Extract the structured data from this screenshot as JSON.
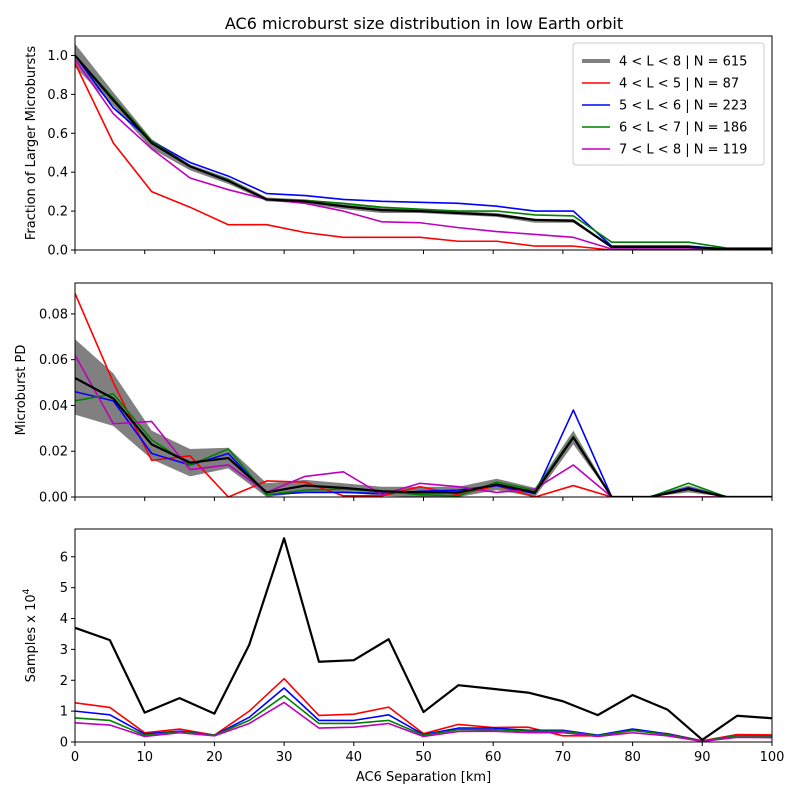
{
  "figure_title": "AC6 microburst size distribution in low Earth orbit",
  "colors": {
    "all": "#000000",
    "band": "#808080",
    "legend_all": "#808080",
    "L45": "#ff0000",
    "L56": "#0000ff",
    "L67": "#008000",
    "L78": "#bf00bf"
  },
  "chart_data": [
    {
      "type": "line",
      "title": "",
      "xlabel": "",
      "ylabel": "Fraction of Larger Microbursts",
      "xlim": [
        0,
        100
      ],
      "ylim": [
        0,
        1.1
      ],
      "xticks": [
        0,
        10,
        20,
        30,
        40,
        50,
        60,
        70,
        80,
        90,
        100
      ],
      "xtick_labels_visible": false,
      "yticks": [
        0.0,
        0.2,
        0.4,
        0.6,
        0.8,
        1.0
      ],
      "ytick_labels": [
        "0.0",
        "0.2",
        "0.4",
        "0.6",
        "0.8",
        "1.0"
      ],
      "grid": false,
      "legend_position": "top-right",
      "x": [
        0,
        5.5,
        11,
        16.5,
        22,
        27.5,
        33,
        38.5,
        44,
        49.5,
        55,
        60.5,
        66,
        71.5,
        77,
        82.5,
        88,
        93.5,
        100
      ],
      "band": {
        "lower": [
          0.94,
          0.74,
          0.52,
          0.41,
          0.34,
          0.25,
          0.24,
          0.21,
          0.19,
          0.19,
          0.18,
          0.17,
          0.14,
          0.14,
          0.01,
          0.01,
          0.01,
          0.0,
          0.0
        ],
        "upper": [
          1.06,
          0.81,
          0.57,
          0.44,
          0.37,
          0.27,
          0.26,
          0.24,
          0.22,
          0.21,
          0.2,
          0.19,
          0.16,
          0.16,
          0.02,
          0.02,
          0.02,
          0.01,
          0.01
        ]
      },
      "series": [
        {
          "name": "4 < L < 8 | N = 615",
          "color_key": "all",
          "legend_color_key": "legend_all",
          "legend_width": 4,
          "values": [
            1.0,
            0.77,
            0.55,
            0.43,
            0.355,
            0.26,
            0.25,
            0.225,
            0.205,
            0.2,
            0.19,
            0.18,
            0.155,
            0.15,
            0.015,
            0.015,
            0.015,
            0.005,
            0.005
          ]
        },
        {
          "name": "4 < L < 5 | N = 87",
          "color_key": "L45",
          "values": [
            0.96,
            0.55,
            0.3,
            0.22,
            0.13,
            0.13,
            0.09,
            0.065,
            0.065,
            0.065,
            0.045,
            0.045,
            0.02,
            0.02,
            0.0,
            0.0,
            0.0,
            0.0,
            0.0
          ]
        },
        {
          "name": "5 < L < 6 | N = 223",
          "color_key": "L56",
          "values": [
            1.0,
            0.73,
            0.56,
            0.45,
            0.38,
            0.29,
            0.28,
            0.26,
            0.25,
            0.245,
            0.24,
            0.225,
            0.2,
            0.2,
            0.02,
            0.02,
            0.02,
            0.005,
            0.005
          ]
        },
        {
          "name": "6 < L < 7 | N = 186",
          "color_key": "L67",
          "values": [
            1.0,
            0.78,
            0.56,
            0.43,
            0.36,
            0.26,
            0.255,
            0.24,
            0.22,
            0.21,
            0.2,
            0.2,
            0.18,
            0.175,
            0.04,
            0.04,
            0.04,
            0.01,
            0.01
          ]
        },
        {
          "name": "7 < L < 8 | N = 119",
          "color_key": "L78",
          "values": [
            0.98,
            0.7,
            0.52,
            0.37,
            0.31,
            0.26,
            0.24,
            0.2,
            0.145,
            0.14,
            0.115,
            0.095,
            0.08,
            0.065,
            0.005,
            0.005,
            0.005,
            0.0,
            0.0
          ]
        }
      ]
    },
    {
      "type": "line",
      "title": "",
      "xlabel": "",
      "ylabel": "Microburst PD",
      "xlim": [
        0,
        100
      ],
      "ylim": [
        0,
        0.0935
      ],
      "xticks": [
        0,
        10,
        20,
        30,
        40,
        50,
        60,
        70,
        80,
        90,
        100
      ],
      "xtick_labels_visible": false,
      "yticks": [
        0.0,
        0.02,
        0.04,
        0.06,
        0.08
      ],
      "ytick_labels": [
        "0.00",
        "0.02",
        "0.04",
        "0.06",
        "0.08"
      ],
      "grid": false,
      "legend_position": "none",
      "x": [
        0,
        5.5,
        11,
        16.5,
        22,
        27.5,
        33,
        38.5,
        44,
        49.5,
        55,
        60.5,
        66,
        71.5,
        77,
        82.5,
        88,
        93.5,
        100
      ],
      "band": {
        "lower": [
          0.036,
          0.031,
          0.0165,
          0.009,
          0.0125,
          0.0,
          0.002,
          0.002,
          0.0005,
          0.0,
          0.0,
          0.003,
          0.0,
          0.023,
          0.0,
          0.0,
          0.002,
          0.0,
          0.0
        ],
        "upper": [
          0.069,
          0.054,
          0.029,
          0.021,
          0.0215,
          0.006,
          0.0075,
          0.006,
          0.0045,
          0.0045,
          0.0045,
          0.008,
          0.004,
          0.029,
          0.0005,
          0.0005,
          0.005,
          0.0005,
          0.0005
        ]
      },
      "series": [
        {
          "name": "",
          "color_key": "all",
          "values": [
            0.052,
            0.043,
            0.023,
            0.015,
            0.017,
            0.002,
            0.005,
            0.004,
            0.0025,
            0.002,
            0.002,
            0.0055,
            0.002,
            0.026,
            0.0,
            0.0,
            0.0035,
            0.0,
            0.0
          ]
        },
        {
          "name": "",
          "color_key": "L45",
          "values": [
            0.089,
            0.05,
            0.016,
            0.018,
            0.0,
            0.007,
            0.0065,
            0.0005,
            0.0005,
            0.0045,
            0.001,
            0.005,
            0.0,
            0.005,
            0.0,
            0.0,
            0.0,
            0.0,
            0.0
          ]
        },
        {
          "name": "",
          "color_key": "L56",
          "values": [
            0.046,
            0.042,
            0.019,
            0.014,
            0.019,
            0.001,
            0.002,
            0.002,
            0.0015,
            0.0025,
            0.003,
            0.005,
            0.0015,
            0.038,
            0.0,
            0.0,
            0.004,
            0.0,
            0.0
          ]
        },
        {
          "name": "",
          "color_key": "L67",
          "values": [
            0.042,
            0.045,
            0.025,
            0.014,
            0.021,
            0.001,
            0.003,
            0.0035,
            0.0025,
            0.001,
            0.0005,
            0.0065,
            0.003,
            0.0265,
            0.0,
            0.0,
            0.006,
            0.0,
            0.0
          ]
        },
        {
          "name": "",
          "color_key": "L78",
          "values": [
            0.062,
            0.032,
            0.033,
            0.012,
            0.014,
            0.002,
            0.009,
            0.011,
            0.001,
            0.006,
            0.0045,
            0.002,
            0.0035,
            0.014,
            0.0,
            0.0,
            0.0,
            0.0,
            0.0
          ]
        }
      ]
    },
    {
      "type": "line",
      "title": "",
      "xlabel": "AC6 Separation [km]",
      "ylabel_prefix": "Samples x 10",
      "ylabel_exponent": "4",
      "xlim": [
        0,
        100
      ],
      "ylim": [
        0,
        6.9
      ],
      "xticks": [
        0,
        10,
        20,
        30,
        40,
        50,
        60,
        70,
        80,
        90,
        100
      ],
      "xtick_labels_visible": true,
      "xtick_labels": [
        "0",
        "10",
        "20",
        "30",
        "40",
        "50",
        "60",
        "70",
        "80",
        "90",
        "100"
      ],
      "yticks": [
        0,
        1,
        2,
        3,
        4,
        5,
        6
      ],
      "ytick_labels": [
        "0",
        "1",
        "2",
        "3",
        "4",
        "5",
        "6"
      ],
      "grid": false,
      "legend_position": "none",
      "x": [
        0,
        5,
        10,
        15,
        20,
        25,
        30,
        35,
        40,
        45,
        50,
        55,
        60,
        65,
        70,
        75,
        80,
        85,
        90,
        95,
        100
      ],
      "series": [
        {
          "name": "",
          "color_key": "all",
          "values": [
            3.7,
            3.3,
            0.95,
            1.42,
            0.92,
            3.15,
            6.6,
            2.6,
            2.65,
            3.33,
            0.97,
            1.84,
            1.72,
            1.6,
            1.32,
            0.87,
            1.52,
            1.05,
            0.07,
            0.85,
            0.77
          ]
        },
        {
          "name": "",
          "color_key": "L45",
          "values": [
            1.27,
            1.12,
            0.3,
            0.42,
            0.22,
            1.0,
            2.05,
            0.86,
            0.9,
            1.13,
            0.27,
            0.57,
            0.47,
            0.48,
            0.2,
            0.2,
            0.37,
            0.27,
            0.04,
            0.24,
            0.23
          ]
        },
        {
          "name": "",
          "color_key": "L56",
          "values": [
            1.0,
            0.88,
            0.26,
            0.35,
            0.22,
            0.8,
            1.75,
            0.7,
            0.7,
            0.88,
            0.24,
            0.45,
            0.45,
            0.38,
            0.38,
            0.22,
            0.42,
            0.26,
            0.03,
            0.2,
            0.19
          ]
        },
        {
          "name": "",
          "color_key": "L67",
          "values": [
            0.78,
            0.7,
            0.22,
            0.33,
            0.22,
            0.7,
            1.5,
            0.6,
            0.6,
            0.7,
            0.22,
            0.4,
            0.4,
            0.35,
            0.35,
            0.2,
            0.38,
            0.24,
            0.03,
            0.2,
            0.19
          ]
        },
        {
          "name": "",
          "color_key": "L78",
          "values": [
            0.62,
            0.55,
            0.18,
            0.3,
            0.2,
            0.6,
            1.28,
            0.45,
            0.48,
            0.6,
            0.18,
            0.34,
            0.35,
            0.3,
            0.3,
            0.18,
            0.3,
            0.2,
            0.02,
            0.15,
            0.14
          ]
        }
      ]
    }
  ]
}
